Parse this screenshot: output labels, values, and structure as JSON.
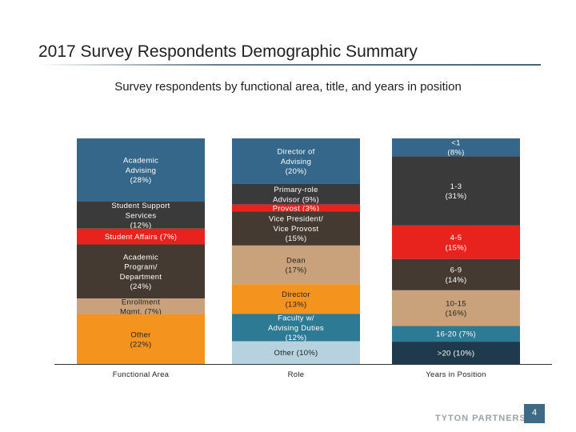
{
  "header": {
    "title": "2017 Survey Respondents Demographic Summary",
    "subtitle": "Survey respondents by functional area, title, and years in position"
  },
  "footer": {
    "brand": "TYTON PARTNERS",
    "page_number": "4"
  },
  "chart_data": {
    "type": "bar",
    "stacked": true,
    "normalized": true,
    "title": "",
    "ylabel": "",
    "xlabel": "",
    "ylim": [
      0,
      100
    ],
    "categories": [
      "Functional Area",
      "Role",
      "Years in Position"
    ],
    "columns": [
      {
        "name": "Functional Area",
        "segments": [
          {
            "label": "Academic\nAdvising\n(28%)",
            "value": 28,
            "color": "#35678a",
            "text_color": "#ffffff"
          },
          {
            "label": "Student Support\nServices\n(12%)",
            "value": 12,
            "color": "#3a3a3a",
            "text_color": "#ffffff"
          },
          {
            "label": "Student Affairs (7%)",
            "value": 7,
            "color": "#e8221c",
            "text_color": "#ffffff"
          },
          {
            "label": "Academic\nProgram/\nDepartment\n(24%)",
            "value": 24,
            "color": "#443a32",
            "text_color": "#ffffff"
          },
          {
            "label": "Enrollment\nMgmt. (7%)",
            "value": 7,
            "color": "#c9a27c",
            "text_color": "#222222"
          },
          {
            "label": "Other\n(22%)",
            "value": 22,
            "color": "#f5931f",
            "text_color": "#222222"
          }
        ]
      },
      {
        "name": "Role",
        "segments": [
          {
            "label": "Director of\nAdvising\n(20%)",
            "value": 20,
            "color": "#35678a",
            "text_color": "#ffffff"
          },
          {
            "label": "Primary-role\nAdvisor (9%)",
            "value": 9,
            "color": "#3a3a3a",
            "text_color": "#ffffff"
          },
          {
            "label": "Provost (3%)",
            "value": 3,
            "color": "#e8221c",
            "text_color": "#ffffff"
          },
          {
            "label": "Vice President/\nVice Provost\n(15%)",
            "value": 15,
            "color": "#443a32",
            "text_color": "#ffffff"
          },
          {
            "label": "Dean\n(17%)",
            "value": 17,
            "color": "#c9a27c",
            "text_color": "#222222"
          },
          {
            "label": "Director\n(13%)",
            "value": 13,
            "color": "#f5931f",
            "text_color": "#222222"
          },
          {
            "label": "Faculty w/\nAdvising Duties\n(12%)",
            "value": 12,
            "color": "#2d7a94",
            "text_color": "#ffffff"
          },
          {
            "label": "Other (10%)",
            "value": 10,
            "color": "#b7d2df",
            "text_color": "#222222"
          }
        ]
      },
      {
        "name": "Years in Position",
        "segments": [
          {
            "label": "<1\n(8%)",
            "value": 8,
            "color": "#35678a",
            "text_color": "#ffffff"
          },
          {
            "label": "1-3\n(31%)",
            "value": 31,
            "color": "#3a3a3a",
            "text_color": "#ffffff"
          },
          {
            "label": "4-5\n(15%)",
            "value": 15,
            "color": "#e8221c",
            "text_color": "#ffffff"
          },
          {
            "label": "6-9\n(14%)",
            "value": 14,
            "color": "#443a32",
            "text_color": "#ffffff"
          },
          {
            "label": "10-15\n(16%)",
            "value": 16,
            "color": "#c9a27c",
            "text_color": "#222222"
          },
          {
            "label": "16-20 (7%)",
            "value": 7,
            "color": "#2d7a94",
            "text_color": "#ffffff"
          },
          {
            "label": ">20 (10%)",
            "value": 10,
            "color": "#1f3a4c",
            "text_color": "#ffffff"
          }
        ]
      }
    ]
  }
}
